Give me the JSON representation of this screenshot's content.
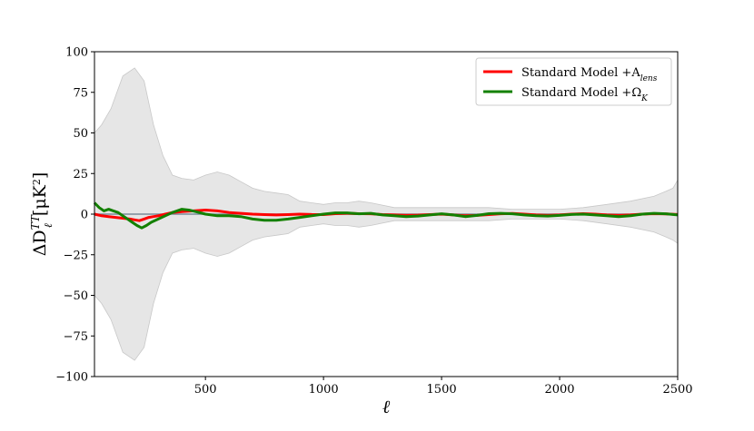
{
  "chart_data": {
    "type": "line",
    "title": "",
    "xlabel": "ℓ",
    "ylabel": "ΔD",
    "ylabel_sup": "TT",
    "ylabel_sub": "ℓ",
    "ylabel_unit": "[μK",
    "ylabel_unit_sup": "2",
    "ylabel_unit_end": "]",
    "xlim": [
      30,
      2500
    ],
    "ylim": [
      -100,
      100
    ],
    "x_ticks": [
      500,
      1000,
      1500,
      2000,
      2500
    ],
    "x_tick_labels": [
      "500",
      "1000",
      "1500",
      "2000",
      "2500"
    ],
    "y_ticks": [
      100,
      75,
      50,
      25,
      0,
      -25,
      -50,
      -75,
      -100
    ],
    "y_tick_labels": [
      "100",
      "75",
      "50",
      "25",
      "0",
      "−25",
      "−50",
      "−75",
      "−100"
    ],
    "grid": false,
    "legend_position": "top-right",
    "zero_line_color": "#7a8c99",
    "band": {
      "color": "#e6e6e6",
      "edge_color": "#c8c8c8",
      "x": [
        30,
        60,
        100,
        150,
        200,
        240,
        280,
        320,
        360,
        400,
        450,
        500,
        550,
        600,
        650,
        700,
        750,
        800,
        850,
        900,
        950,
        1000,
        1050,
        1100,
        1150,
        1200,
        1300,
        1400,
        1500,
        1600,
        1700,
        1800,
        1900,
        2000,
        2100,
        2200,
        2300,
        2400,
        2450,
        2480,
        2500
      ],
      "upper": [
        50,
        55,
        65,
        85,
        90,
        82,
        55,
        36,
        24,
        22,
        21,
        24,
        26,
        24,
        20,
        16,
        14,
        13,
        12,
        8,
        7,
        6,
        7,
        7,
        8,
        7,
        4,
        4,
        4,
        4,
        4,
        3,
        3,
        3,
        4,
        6,
        8,
        11,
        14,
        16,
        21
      ],
      "lower": [
        -50,
        -55,
        -65,
        -85,
        -90,
        -82,
        -55,
        -36,
        -24,
        -22,
        -21,
        -24,
        -26,
        -24,
        -20,
        -16,
        -14,
        -13,
        -12,
        -8,
        -7,
        -6,
        -7,
        -7,
        -8,
        -7,
        -4,
        -4,
        -4,
        -4,
        -4,
        -3,
        -3,
        -3,
        -4,
        -6,
        -8,
        -11,
        -14,
        -16,
        -18
      ]
    },
    "series": [
      {
        "name": "Standard Model +A",
        "name_sub": "lens",
        "color": "#ff0000",
        "x": [
          30,
          60,
          90,
          120,
          150,
          180,
          200,
          220,
          240,
          260,
          280,
          300,
          330,
          360,
          400,
          450,
          500,
          550,
          600,
          650,
          700,
          750,
          800,
          850,
          900,
          950,
          1000,
          1050,
          1100,
          1150,
          1200,
          1250,
          1300,
          1350,
          1400,
          1450,
          1500,
          1550,
          1600,
          1650,
          1700,
          1750,
          1800,
          1850,
          1900,
          1950,
          2000,
          2050,
          2100,
          2150,
          2200,
          2250,
          2300,
          2350,
          2400,
          2450,
          2500
        ],
        "values": [
          0,
          -1,
          -1.5,
          -2,
          -2.5,
          -3,
          -3.5,
          -4,
          -3,
          -2,
          -1.5,
          -1,
          0,
          1,
          1.5,
          2,
          2.5,
          2,
          1,
          0.5,
          0,
          -0.3,
          -0.5,
          -0.3,
          0,
          -0.2,
          -0.3,
          0.3,
          0.5,
          0.3,
          0.2,
          -0.3,
          -0.5,
          -0.8,
          -0.6,
          -0.3,
          0,
          -0.5,
          -1,
          -0.8,
          -0.3,
          0.2,
          0.4,
          0,
          -0.5,
          -0.8,
          -0.5,
          0,
          0.3,
          0,
          -0.5,
          -0.8,
          -0.5,
          0,
          0.3,
          0.1,
          -0.2
        ]
      },
      {
        "name": "Standard Model +Ω",
        "name_sub": "K",
        "color": "#138000",
        "x": [
          30,
          50,
          70,
          90,
          110,
          130,
          150,
          170,
          190,
          210,
          230,
          250,
          270,
          300,
          330,
          360,
          400,
          430,
          460,
          500,
          550,
          600,
          650,
          700,
          750,
          800,
          850,
          900,
          950,
          1000,
          1050,
          1100,
          1150,
          1200,
          1250,
          1300,
          1350,
          1400,
          1450,
          1500,
          1550,
          1600,
          1650,
          1700,
          1750,
          1800,
          1850,
          1900,
          1950,
          2000,
          2050,
          2100,
          2150,
          2200,
          2250,
          2300,
          2350,
          2400,
          2450,
          2500
        ],
        "values": [
          7,
          4,
          2,
          3,
          2,
          1,
          -1,
          -3,
          -5,
          -7,
          -8.5,
          -7,
          -5,
          -3,
          -1,
          1,
          3,
          2.5,
          1.5,
          0,
          -1,
          -1,
          -1.5,
          -3,
          -3.8,
          -3.8,
          -3,
          -2,
          -1,
          0,
          0.8,
          0.8,
          0.2,
          0.5,
          -0.5,
          -1,
          -1.5,
          -1.2,
          -0.5,
          0.2,
          -0.5,
          -1.5,
          -0.8,
          0.3,
          0.5,
          0.2,
          -0.5,
          -1,
          -1.2,
          -0.8,
          -0.2,
          0,
          -0.5,
          -1,
          -1.5,
          -1,
          0,
          0.5,
          0.2,
          -0.5
        ]
      }
    ]
  }
}
